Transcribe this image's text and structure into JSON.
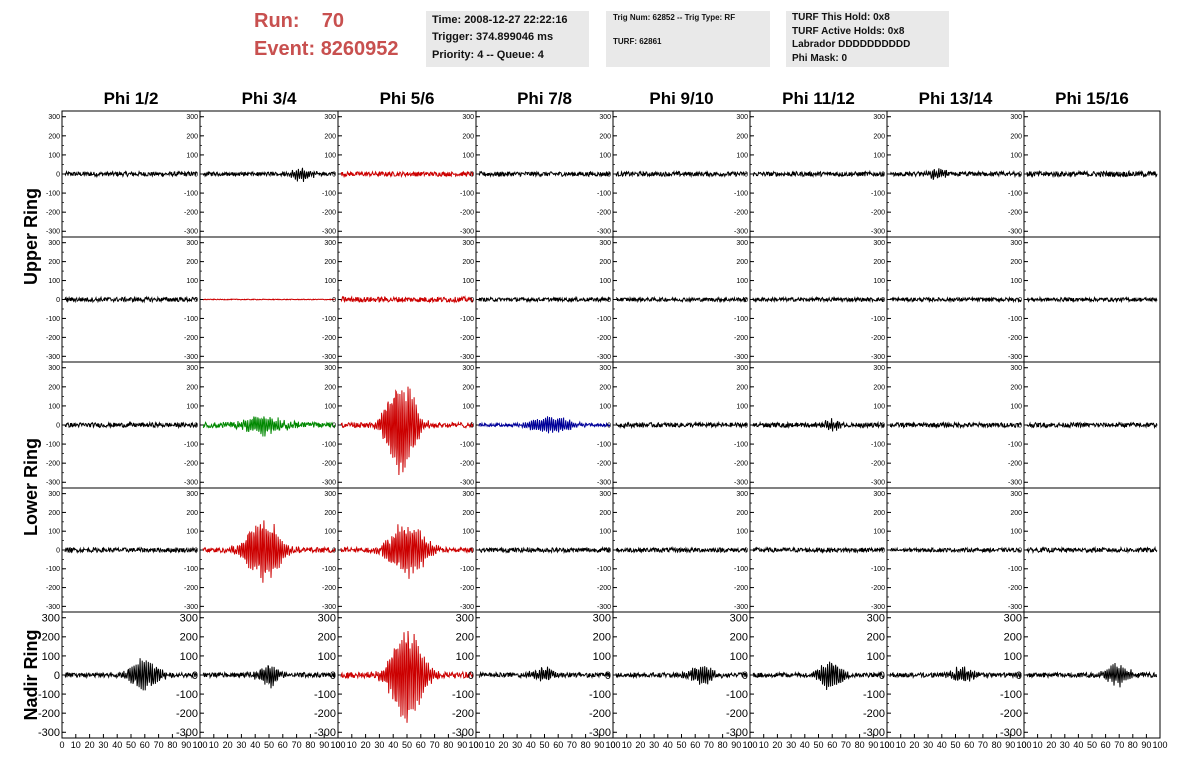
{
  "header": {
    "run_label": "Run:",
    "run_value": "70",
    "event_label": "Event:",
    "event_value": "8260952",
    "time_line": "Time: 2008-12-27 22:22:16",
    "trigger_line": "Trigger: 374.899046 ms",
    "priority_line": "Priority: 4 -- Queue: 4",
    "trig_num_line": "Trig Num: 62852 -- Trig Type: RF",
    "turf_line": "TURF: 62861",
    "turf_this_hold": "TURF This Hold: 0x8",
    "turf_active_holds": "TURF Active Holds: 0x8",
    "labrador": "Labrador DDDDDDDDDD",
    "phi_mask": "Phi Mask: 0"
  },
  "chart_data": {
    "type": "line",
    "columns": [
      "Phi 1/2",
      "Phi 3/4",
      "Phi 5/6",
      "Phi 7/8",
      "Phi 9/10",
      "Phi 11/12",
      "Phi 13/14",
      "Phi 15/16"
    ],
    "rows": [
      "Upper Ring",
      "Lower Ring",
      "Nadir Ring"
    ],
    "row_label_spans": [
      2,
      2,
      1
    ],
    "ylim": [
      -330,
      330
    ],
    "xlim": [
      0,
      100
    ],
    "yticks_small": [
      "300",
      "200",
      "100",
      "0",
      "-100",
      "-200",
      "-300"
    ],
    "yticks_large": [
      "300",
      "200",
      "100",
      "0",
      "-100",
      "-200",
      "-300"
    ],
    "xticks": [
      "0",
      "10",
      "20",
      "30",
      "40",
      "50",
      "60",
      "70",
      "80",
      "90",
      "100"
    ],
    "colors": {
      "black": "#000000",
      "red": "#cc0000",
      "green": "#008800",
      "blue": "#000099"
    },
    "panels": [
      [
        {
          "color": "black",
          "noise": 12,
          "burst": 0,
          "center": 0,
          "width": 0
        },
        {
          "color": "black",
          "noise": 10,
          "burst": 35,
          "center": 75,
          "width": 10
        },
        {
          "color": "red",
          "noise": 12,
          "burst": 0,
          "center": 0,
          "width": 0
        },
        {
          "color": "black",
          "noise": 12,
          "burst": 0,
          "center": 0,
          "width": 0
        },
        {
          "color": "black",
          "noise": 12,
          "burst": 0,
          "center": 0,
          "width": 0
        },
        {
          "color": "black",
          "noise": 12,
          "burst": 0,
          "center": 0,
          "width": 0
        },
        {
          "color": "black",
          "noise": 12,
          "burst": 30,
          "center": 35,
          "width": 8
        },
        {
          "color": "black",
          "noise": 14,
          "burst": 0,
          "center": 0,
          "width": 0
        }
      ],
      [
        {
          "color": "black",
          "noise": 12,
          "burst": 0,
          "center": 0,
          "width": 0
        },
        {
          "color": "red",
          "noise": 2,
          "burst": 0,
          "center": 0,
          "width": 0
        },
        {
          "color": "red",
          "noise": 14,
          "burst": 0,
          "center": 0,
          "width": 0
        },
        {
          "color": "black",
          "noise": 10,
          "burst": 0,
          "center": 0,
          "width": 0
        },
        {
          "color": "black",
          "noise": 10,
          "burst": 0,
          "center": 0,
          "width": 0
        },
        {
          "color": "black",
          "noise": 10,
          "burst": 0,
          "center": 0,
          "width": 0
        },
        {
          "color": "black",
          "noise": 10,
          "burst": 0,
          "center": 0,
          "width": 0
        },
        {
          "color": "black",
          "noise": 10,
          "burst": 0,
          "center": 0,
          "width": 0
        }
      ],
      [
        {
          "color": "black",
          "noise": 12,
          "burst": 0,
          "center": 0,
          "width": 0
        },
        {
          "color": "green",
          "noise": 14,
          "burst": 55,
          "center": 45,
          "width": 18
        },
        {
          "color": "red",
          "noise": 14,
          "burst": 300,
          "center": 45,
          "width": 12
        },
        {
          "color": "blue",
          "noise": 8,
          "burst": 50,
          "center": 55,
          "width": 18
        },
        {
          "color": "black",
          "noise": 12,
          "burst": 0,
          "center": 0,
          "width": 0
        },
        {
          "color": "black",
          "noise": 12,
          "burst": 30,
          "center": 60,
          "width": 8
        },
        {
          "color": "black",
          "noise": 12,
          "burst": 0,
          "center": 0,
          "width": 0
        },
        {
          "color": "black",
          "noise": 12,
          "burst": 0,
          "center": 0,
          "width": 0
        }
      ],
      [
        {
          "color": "black",
          "noise": 12,
          "burst": 0,
          "center": 0,
          "width": 0
        },
        {
          "color": "red",
          "noise": 14,
          "burst": 210,
          "center": 45,
          "width": 14
        },
        {
          "color": "red",
          "noise": 14,
          "burst": 160,
          "center": 50,
          "width": 16
        },
        {
          "color": "black",
          "noise": 12,
          "burst": 0,
          "center": 0,
          "width": 0
        },
        {
          "color": "black",
          "noise": 12,
          "burst": 0,
          "center": 0,
          "width": 0
        },
        {
          "color": "black",
          "noise": 12,
          "burst": 0,
          "center": 0,
          "width": 0
        },
        {
          "color": "black",
          "noise": 10,
          "burst": 0,
          "center": 0,
          "width": 0
        },
        {
          "color": "black",
          "noise": 12,
          "burst": 0,
          "center": 0,
          "width": 0
        }
      ],
      [
        {
          "color": "black",
          "noise": 12,
          "burst": 90,
          "center": 60,
          "width": 12
        },
        {
          "color": "black",
          "noise": 12,
          "burst": 60,
          "center": 50,
          "width": 10
        },
        {
          "color": "red",
          "noise": 16,
          "burst": 300,
          "center": 50,
          "width": 13
        },
        {
          "color": "black",
          "noise": 12,
          "burst": 40,
          "center": 50,
          "width": 10
        },
        {
          "color": "black",
          "noise": 12,
          "burst": 55,
          "center": 65,
          "width": 10
        },
        {
          "color": "black",
          "noise": 12,
          "burst": 85,
          "center": 60,
          "width": 10
        },
        {
          "color": "black",
          "noise": 12,
          "burst": 45,
          "center": 55,
          "width": 10
        },
        {
          "color": "black",
          "noise": 12,
          "burst": 60,
          "center": 70,
          "width": 10
        }
      ]
    ]
  }
}
